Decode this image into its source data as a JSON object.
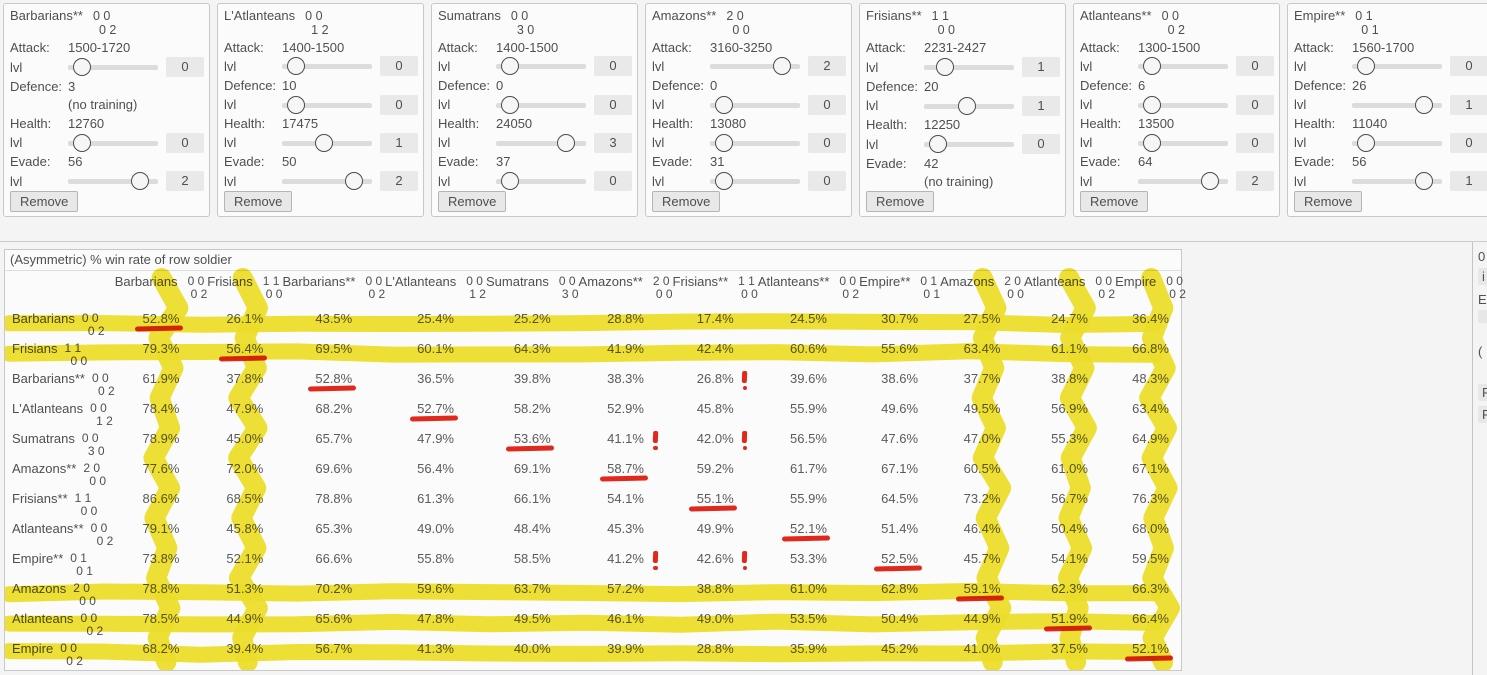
{
  "labels": {
    "lvl": "lvl"
  },
  "panels": [
    {
      "name": "Barbarians**",
      "digits_top": "0 0",
      "digits_bottom": "0 2",
      "remove_label": "Remove",
      "stats": [
        {
          "label": "Attack:",
          "value": "1500-1720",
          "lvl": "0",
          "pct": 7
        },
        {
          "label": "Defence:",
          "value": "3",
          "no_training": "(no training)"
        },
        {
          "label": "Health:",
          "value": "12760",
          "lvl": "0",
          "pct": 7
        },
        {
          "label": "Evade:",
          "value": "56",
          "lvl": "2",
          "pct": 87
        }
      ]
    },
    {
      "name": "L'Atlanteans",
      "digits_top": "0 0",
      "digits_bottom": "1 2",
      "remove_label": "Remove",
      "stats": [
        {
          "label": "Attack:",
          "value": "1400-1500",
          "lvl": "0",
          "pct": 7
        },
        {
          "label": "Defence:",
          "value": "10",
          "lvl": "0",
          "pct": 7
        },
        {
          "label": "Health:",
          "value": "17475",
          "lvl": "1",
          "pct": 46
        },
        {
          "label": "Evade:",
          "value": "50",
          "lvl": "2",
          "pct": 87
        }
      ]
    },
    {
      "name": "Sumatrans",
      "digits_top": "0 0",
      "digits_bottom": "3 0",
      "remove_label": "Remove",
      "stats": [
        {
          "label": "Attack:",
          "value": "1400-1500",
          "lvl": "0",
          "pct": 7
        },
        {
          "label": "Defence:",
          "value": "0",
          "lvl": "0",
          "pct": 7
        },
        {
          "label": "Health:",
          "value": "24050",
          "lvl": "3",
          "pct": 85
        },
        {
          "label": "Evade:",
          "value": "37",
          "lvl": "0",
          "pct": 7
        }
      ]
    },
    {
      "name": "Amazons**",
      "digits_top": "2 0",
      "digits_bottom": "0 0",
      "remove_label": "Remove",
      "stats": [
        {
          "label": "Attack:",
          "value": "3160-3250",
          "lvl": "2",
          "pct": 87
        },
        {
          "label": "Defence:",
          "value": "0",
          "lvl": "0",
          "pct": 7
        },
        {
          "label": "Health:",
          "value": "13080",
          "lvl": "0",
          "pct": 7
        },
        {
          "label": "Evade:",
          "value": "31",
          "lvl": "0",
          "pct": 7
        }
      ]
    },
    {
      "name": "Frisians**",
      "digits_top": "1 1",
      "digits_bottom": "0 0",
      "remove_label": "Remove",
      "stats": [
        {
          "label": "Attack:",
          "value": "2231-2427",
          "lvl": "1",
          "pct": 17
        },
        {
          "label": "Defence:",
          "value": "20",
          "lvl": "1",
          "pct": 47
        },
        {
          "label": "Health:",
          "value": "12250",
          "lvl": "0",
          "pct": 7
        },
        {
          "label": "Evade:",
          "value": "42",
          "no_training": "(no training)"
        }
      ]
    },
    {
      "name": "Atlanteans**",
      "digits_top": "0 0",
      "digits_bottom": "0 2",
      "remove_label": "Remove",
      "stats": [
        {
          "label": "Attack:",
          "value": "1300-1500",
          "lvl": "0",
          "pct": 7
        },
        {
          "label": "Defence:",
          "value": "6",
          "lvl": "0",
          "pct": 7
        },
        {
          "label": "Health:",
          "value": "13500",
          "lvl": "0",
          "pct": 7
        },
        {
          "label": "Evade:",
          "value": "64",
          "lvl": "2",
          "pct": 87
        }
      ]
    },
    {
      "name": "Empire**",
      "digits_top": "0 1",
      "digits_bottom": "0 1",
      "remove_label": "Remove",
      "stats": [
        {
          "label": "Attack:",
          "value": "1560-1700",
          "lvl": "0",
          "pct": 7
        },
        {
          "label": "Defence:",
          "value": "26",
          "lvl": "1",
          "pct": 87
        },
        {
          "label": "Health:",
          "value": "11040",
          "lvl": "0",
          "pct": 7
        },
        {
          "label": "Evade:",
          "value": "56",
          "lvl": "1",
          "pct": 87
        }
      ]
    }
  ],
  "win_table": {
    "title": "(Asymmetric) % win rate of row soldier",
    "columns": [
      {
        "name": "Barbarians",
        "digits_top": "0 0",
        "digits_bottom": "0 2"
      },
      {
        "name": "Frisians",
        "digits_top": "1 1",
        "digits_bottom": "0 0"
      },
      {
        "name": "Barbarians**",
        "digits_top": "0 0",
        "digits_bottom": "0 2"
      },
      {
        "name": "L'Atlanteans",
        "digits_top": "0 0",
        "digits_bottom": "1 2"
      },
      {
        "name": "Sumatrans",
        "digits_top": "0 0",
        "digits_bottom": "3 0"
      },
      {
        "name": "Amazons**",
        "digits_top": "2 0",
        "digits_bottom": "0 0"
      },
      {
        "name": "Frisians**",
        "digits_top": "1 1",
        "digits_bottom": "0 0"
      },
      {
        "name": "Atlanteans**",
        "digits_top": "0 0",
        "digits_bottom": "0 2"
      },
      {
        "name": "Empire**",
        "digits_top": "0 1",
        "digits_bottom": "0 1"
      },
      {
        "name": "Amazons",
        "digits_top": "2 0",
        "digits_bottom": "0 0"
      },
      {
        "name": "Atlanteans",
        "digits_top": "0 0",
        "digits_bottom": "0 2"
      },
      {
        "name": "Empire",
        "digits_top": "0 0",
        "digits_bottom": "0 2"
      }
    ],
    "rows": [
      {
        "name": "Barbarians",
        "digits_top": "0 0",
        "digits_bottom": "0 2",
        "values": [
          "52.8%",
          "26.1%",
          "43.5%",
          "25.4%",
          "25.2%",
          "28.8%",
          "17.4%",
          "24.5%",
          "30.7%",
          "27.5%",
          "24.7%",
          "36.4%"
        ]
      },
      {
        "name": "Frisians",
        "digits_top": "1 1",
        "digits_bottom": "0 0",
        "values": [
          "79.3%",
          "56.4%",
          "69.5%",
          "60.1%",
          "64.3%",
          "41.9%",
          "42.4%",
          "60.6%",
          "55.6%",
          "63.4%",
          "61.1%",
          "66.8%"
        ]
      },
      {
        "name": "Barbarians**",
        "digits_top": "0 0",
        "digits_bottom": "0 2",
        "values": [
          "61.9%",
          "37.8%",
          "52.8%",
          "36.5%",
          "39.8%",
          "38.3%",
          "26.8%",
          "39.6%",
          "38.6%",
          "37.7%",
          "38.8%",
          "48.3%"
        ]
      },
      {
        "name": "L'Atlanteans",
        "digits_top": "0 0",
        "digits_bottom": "1 2",
        "values": [
          "78.4%",
          "47.9%",
          "68.2%",
          "52.7%",
          "58.2%",
          "52.9%",
          "45.8%",
          "55.9%",
          "49.6%",
          "49.5%",
          "56.9%",
          "63.4%"
        ]
      },
      {
        "name": "Sumatrans",
        "digits_top": "0 0",
        "digits_bottom": "3 0",
        "values": [
          "78.9%",
          "45.0%",
          "65.7%",
          "47.9%",
          "53.6%",
          "41.1%",
          "42.0%",
          "56.5%",
          "47.6%",
          "47.0%",
          "55.3%",
          "64.9%"
        ]
      },
      {
        "name": "Amazons**",
        "digits_top": "2 0",
        "digits_bottom": "0 0",
        "values": [
          "77.6%",
          "72.0%",
          "69.6%",
          "56.4%",
          "69.1%",
          "58.7%",
          "59.2%",
          "61.7%",
          "67.1%",
          "60.5%",
          "61.0%",
          "67.1%"
        ]
      },
      {
        "name": "Frisians**",
        "digits_top": "1 1",
        "digits_bottom": "0 0",
        "values": [
          "86.6%",
          "68.5%",
          "78.8%",
          "61.3%",
          "66.1%",
          "54.1%",
          "55.1%",
          "55.9%",
          "64.5%",
          "73.2%",
          "56.7%",
          "76.3%"
        ]
      },
      {
        "name": "Atlanteans**",
        "digits_top": "0 0",
        "digits_bottom": "0 2",
        "values": [
          "79.1%",
          "45.8%",
          "65.3%",
          "49.0%",
          "48.4%",
          "45.3%",
          "49.9%",
          "52.1%",
          "51.4%",
          "46.4%",
          "50.4%",
          "68.0%"
        ]
      },
      {
        "name": "Empire**",
        "digits_top": "0 1",
        "digits_bottom": "0 1",
        "values": [
          "73.8%",
          "52.1%",
          "66.6%",
          "55.8%",
          "58.5%",
          "41.2%",
          "42.6%",
          "53.3%",
          "52.5%",
          "45.7%",
          "54.1%",
          "59.5%"
        ]
      },
      {
        "name": "Amazons",
        "digits_top": "2 0",
        "digits_bottom": "0 0",
        "values": [
          "78.8%",
          "51.3%",
          "70.2%",
          "59.6%",
          "63.7%",
          "57.2%",
          "38.8%",
          "61.0%",
          "62.8%",
          "59.1%",
          "62.3%",
          "66.3%"
        ]
      },
      {
        "name": "Atlanteans",
        "digits_top": "0 0",
        "digits_bottom": "0 2",
        "values": [
          "78.5%",
          "44.9%",
          "65.6%",
          "47.8%",
          "49.5%",
          "46.1%",
          "49.0%",
          "53.5%",
          "50.4%",
          "44.9%",
          "51.9%",
          "66.4%"
        ]
      },
      {
        "name": "Empire",
        "digits_top": "0 0",
        "digits_bottom": "0 2",
        "values": [
          "68.2%",
          "39.4%",
          "56.7%",
          "41.3%",
          "40.0%",
          "39.9%",
          "28.8%",
          "35.9%",
          "45.2%",
          "41.0%",
          "37.5%",
          "52.1%"
        ]
      }
    ]
  },
  "annotations": {
    "highlighter_color": "#f0e22b",
    "red_color": "#e0291c",
    "highlighted_row_indexes": [
      0,
      1,
      9,
      10,
      11
    ],
    "highlighted_column_indexes": [
      0,
      1,
      9,
      10,
      11
    ],
    "red_underline_cells": [
      [
        0,
        0
      ],
      [
        1,
        1
      ],
      [
        2,
        2
      ],
      [
        3,
        3
      ],
      [
        4,
        4
      ],
      [
        5,
        5
      ],
      [
        6,
        6
      ],
      [
        7,
        7
      ],
      [
        8,
        8
      ],
      [
        9,
        9
      ],
      [
        10,
        10
      ],
      [
        11,
        11
      ]
    ],
    "red_exclamation_cells": [
      [
        2,
        6
      ],
      [
        4,
        5
      ],
      [
        4,
        6
      ],
      [
        8,
        5
      ],
      [
        8,
        6
      ]
    ]
  },
  "right_edge": {
    "fragments": [
      {
        "text": "0",
        "boxed": false
      },
      {
        "text": "i",
        "boxed": true
      },
      {
        "text": "E",
        "boxed": false
      },
      {
        "text": "",
        "boxed": true
      },
      {
        "text": "(",
        "boxed": false
      },
      {
        "text": "F",
        "boxed": true
      },
      {
        "text": "P",
        "boxed": true
      }
    ]
  }
}
